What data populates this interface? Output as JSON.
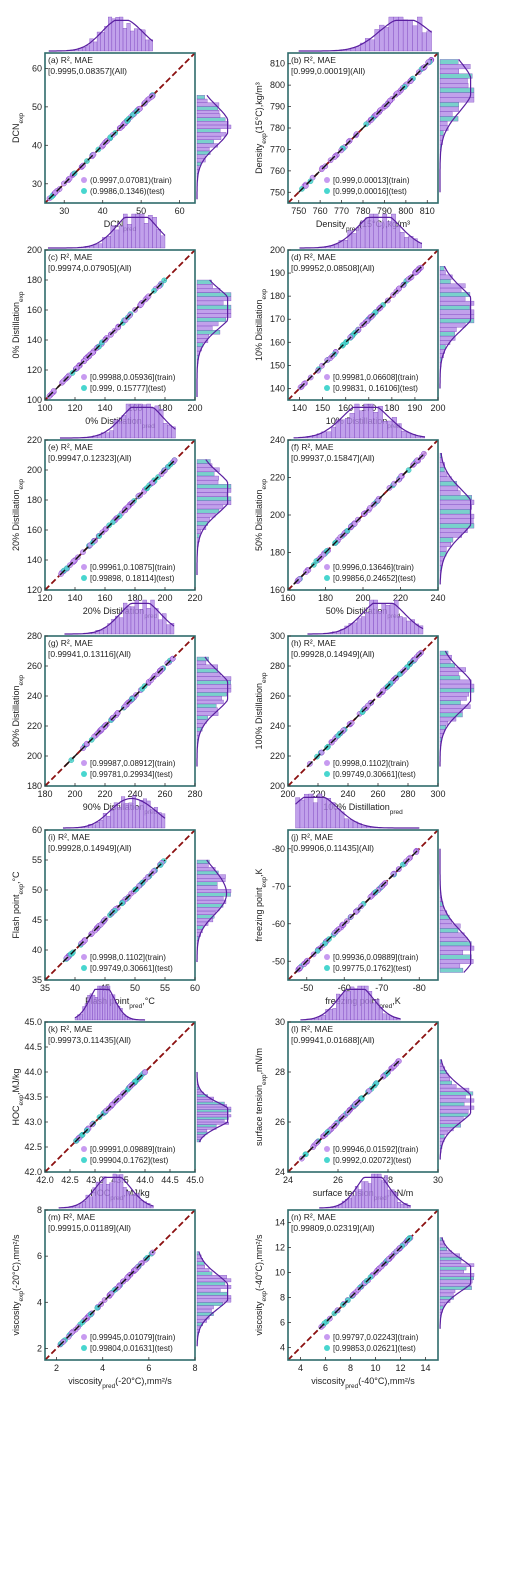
{
  "colors": {
    "train": "#c79af0",
    "test": "#48d6cf",
    "all_edge": "#7a2fc0",
    "diag": "#8b1010",
    "fit": "#111111",
    "hist": "#b28ae6",
    "hist_edge": "#6d2fb4",
    "hist_test": "#58c6bf",
    "curve": "#5a1fa0",
    "frame": "#2e6b6b"
  },
  "chart_data": [
    {
      "type": "scatter",
      "panel": "(a)",
      "header": "R², MAE",
      "all_text": "[0.9995,0.08357](All)",
      "train_text": "(0.9997,0.07081)(train)",
      "test_text": "(0.9986,0.1346)(test)",
      "xlabel": "DCN",
      "xlabel_sub": "pred",
      "xlabel_tail": "",
      "ylabel": "DCN",
      "ylabel_sub": "exp",
      "ylabel_tail": "",
      "xlim": [
        25,
        64
      ],
      "ylim": [
        25,
        64
      ],
      "xticks": [
        "30",
        "40",
        "50",
        "60"
      ],
      "yticks": [
        "30",
        "40",
        "50",
        "60"
      ],
      "tick_values": [
        30,
        40,
        50,
        60
      ],
      "reversed": false,
      "data_range": [
        26,
        53
      ],
      "hist_peaks": [
        43,
        48
      ],
      "legend_position": "bottom-right"
    },
    {
      "type": "scatter",
      "panel": "(b)",
      "header": "R², MAE",
      "all_text": "[0.999,0.00019](All)",
      "train_text": "[0.999,0.00013](train)",
      "test_text": "[0.999,0.00016](test)",
      "xlabel": "Density",
      "xlabel_sub": "pred",
      "xlabel_tail": "(15°C),kg/m³",
      "ylabel": "Density",
      "ylabel_sub": "exp",
      "ylabel_tail": "(15°C),kg/m³",
      "xlim": [
        745,
        815
      ],
      "ylim": [
        745,
        815
      ],
      "xticks": [
        "750",
        "760",
        "770",
        "780",
        "790",
        "800",
        "810"
      ],
      "yticks": [
        "750",
        "760",
        "770",
        "780",
        "790",
        "800",
        "810"
      ],
      "tick_values": [
        750,
        760,
        770,
        780,
        790,
        800,
        810
      ],
      "reversed": false,
      "data_range": [
        750,
        812
      ],
      "hist_peaks": [
        795,
        806
      ],
      "legend_position": "bottom-right"
    },
    {
      "type": "scatter",
      "panel": "(c)",
      "header": "R², MAE",
      "all_text": "[0.99974,0.07905](All)",
      "train_text": "[0.99988,0.05936](train)",
      "test_text": "[0.999, 0.15777](test)",
      "xlabel": "0% Distillation",
      "xlabel_sub": "pred",
      "xlabel_tail": "",
      "ylabel": "0% Distillation",
      "ylabel_sub": "exp",
      "ylabel_tail": "",
      "xlim": [
        100,
        200
      ],
      "ylim": [
        100,
        200
      ],
      "xticks": [
        "100",
        "120",
        "140",
        "160",
        "180",
        "200"
      ],
      "yticks": [
        "100",
        "120",
        "140",
        "160",
        "180",
        "200"
      ],
      "tick_values": [
        100,
        120,
        140,
        160,
        180,
        200
      ],
      "reversed": false,
      "data_range": [
        102,
        180
      ],
      "hist_peaks": [
        158,
        165
      ],
      "legend_position": "bottom-right"
    },
    {
      "type": "scatter",
      "panel": "(d)",
      "header": "R², MAE",
      "all_text": "[0.99952,0.08508](All)",
      "train_text": "[0.99981,0.06608](train)",
      "test_text": "[0.99831, 0.16106](test)",
      "xlabel": "10% Distillation",
      "xlabel_sub": "pred",
      "xlabel_tail": "",
      "ylabel": "10% Distillation",
      "ylabel_sub": "exp",
      "ylabel_tail": "",
      "xlim": [
        135,
        200
      ],
      "ylim": [
        135,
        200
      ],
      "xticks": [
        "140",
        "150",
        "160",
        "170",
        "180",
        "190",
        "200"
      ],
      "yticks": [
        "140",
        "150",
        "160",
        "170",
        "180",
        "190",
        "200"
      ],
      "tick_values": [
        140,
        150,
        160,
        170,
        180,
        190,
        200
      ],
      "reversed": false,
      "data_range": [
        140,
        193
      ],
      "hist_peaks": [
        172,
        178
      ],
      "legend_position": "bottom-right"
    },
    {
      "type": "scatter",
      "panel": "(e)",
      "header": "R², MAE",
      "all_text": "[0.99947,0.12323](All)",
      "train_text": "[0.99961,0.10875](train)",
      "test_text": "[0.99898, 0.18114](test)",
      "xlabel": "20% Distillation",
      "xlabel_sub": "pred",
      "xlabel_tail": "",
      "ylabel": "20% Distillation",
      "ylabel_sub": "exp",
      "ylabel_tail": "",
      "xlim": [
        120,
        220
      ],
      "ylim": [
        120,
        220
      ],
      "xticks": [
        "120",
        "140",
        "160",
        "180",
        "200",
        "220"
      ],
      "yticks": [
        "120",
        "140",
        "160",
        "180",
        "200",
        "220"
      ],
      "tick_values": [
        120,
        140,
        160,
        180,
        200,
        220
      ],
      "reversed": false,
      "data_range": [
        130,
        207
      ],
      "hist_peaks": [
        181,
        190
      ],
      "legend_position": "bottom-right"
    },
    {
      "type": "scatter",
      "panel": "(f)",
      "header": "R², MAE",
      "all_text": "[0.99937,0.15847](All)",
      "train_text": "[0.9996,0.13646](train)",
      "test_text": "[0.99856,0.24652](test)",
      "xlabel": "50% Distillation",
      "xlabel_sub": "pred",
      "xlabel_tail": "",
      "ylabel": "50% Distillation",
      "ylabel_sub": "exp",
      "ylabel_tail": "",
      "xlim": [
        160,
        240
      ],
      "ylim": [
        160,
        240
      ],
      "xticks": [
        "160",
        "180",
        "200",
        "220",
        "240"
      ],
      "yticks": [
        "160",
        "180",
        "200",
        "220",
        "240"
      ],
      "tick_values": [
        160,
        180,
        200,
        220,
        240
      ],
      "reversed": false,
      "data_range": [
        163,
        233
      ],
      "hist_peaks": [
        198,
        206
      ],
      "legend_position": "bottom-right"
    },
    {
      "type": "scatter",
      "panel": "(g)",
      "header": "R², MAE",
      "all_text": "[0.99941,0.13116](All)",
      "train_text": "[0.99987,0.08912](train)",
      "test_text": "[0.99781,0.29934](test)",
      "xlabel": "90% Distillation",
      "xlabel_sub": "pred",
      "xlabel_tail": "",
      "ylabel": "90% Distillation",
      "ylabel_sub": "exp",
      "ylabel_tail": "",
      "xlim": [
        180,
        280
      ],
      "ylim": [
        180,
        280
      ],
      "xticks": [
        "180",
        "200",
        "220",
        "240",
        "260",
        "280"
      ],
      "yticks": [
        "180",
        "200",
        "220",
        "240",
        "260",
        "280"
      ],
      "tick_values": [
        180,
        200,
        220,
        240,
        260,
        280
      ],
      "reversed": false,
      "data_range": [
        193,
        266
      ],
      "hist_peaks": [
        239,
        250
      ],
      "legend_position": "bottom-right"
    },
    {
      "type": "scatter",
      "panel": "(h)",
      "header": "R², MAE",
      "all_text": "[0.99928,0.14949](All)",
      "train_text": "[0.9998,0.1102](train)",
      "test_text": "[0.99749,0.30661](test)",
      "xlabel": "100% Distillation",
      "xlabel_sub": "pred",
      "xlabel_tail": "",
      "ylabel": "100% Distillation",
      "ylabel_sub": "exp",
      "ylabel_tail": "",
      "xlim": [
        200,
        300
      ],
      "ylim": [
        200,
        300
      ],
      "xticks": [
        "200",
        "220",
        "240",
        "260",
        "280",
        "300"
      ],
      "yticks": [
        "200",
        "220",
        "240",
        "260",
        "280",
        "300"
      ],
      "tick_values": [
        200,
        220,
        240,
        260,
        280,
        300
      ],
      "reversed": false,
      "data_range": [
        213,
        290
      ],
      "hist_peaks": [
        259,
        270
      ],
      "legend_position": "bottom-right"
    },
    {
      "type": "scatter",
      "panel": "(i)",
      "header": "R², MAE",
      "all_text": "[0.99928,0.14949](All)",
      "train_text": "[0.9998,0.1102](train)",
      "test_text": "[0.99749,0.30661](test)",
      "xlabel": "Flash point",
      "xlabel_sub": "pred",
      "xlabel_tail": ",°C",
      "ylabel": "Flash point",
      "ylabel_sub": "exp",
      "ylabel_tail": ",°C",
      "xlim": [
        35,
        60
      ],
      "ylim": [
        35,
        60
      ],
      "xticks": [
        "35",
        "40",
        "45",
        "50",
        "55",
        "60"
      ],
      "yticks": [
        "35",
        "40",
        "45",
        "50",
        "55",
        "60"
      ],
      "tick_values": [
        35,
        40,
        45,
        50,
        55,
        60
      ],
      "reversed": false,
      "data_range": [
        38,
        55
      ],
      "hist_peaks": [
        48,
        52
      ],
      "legend_position": "bottom-right"
    },
    {
      "type": "scatter",
      "panel": "(j)",
      "header": "R², MAE",
      "all_text": "[0.99906,0.11435](All)",
      "train_text": "[0.99936,0.09889](train)",
      "test_text": "[0.99775,0.1762](test)",
      "xlabel": "freezing point",
      "xlabel_sub": "pred",
      "xlabel_tail": ",K",
      "ylabel": "freezing point",
      "ylabel_sub": "exp",
      "ylabel_tail": ",K",
      "xlim": [
        -45,
        -85
      ],
      "ylim": [
        -45,
        -85
      ],
      "xticks": [
        "-50",
        "-60",
        "-70",
        "-80"
      ],
      "yticks": [
        "-50",
        "-60",
        "-70",
        "-80"
      ],
      "tick_values": [
        -50,
        -60,
        -70,
        -80
      ],
      "reversed": true,
      "data_range": [
        -47,
        -80
      ],
      "hist_peaks": [
        -50,
        -55
      ],
      "legend_position": "bottom-right"
    },
    {
      "type": "scatter",
      "panel": "(k)",
      "header": "R², MAE",
      "all_text": "[0.99973,0.11435](All)",
      "train_text": "[0.99991,0.09889](train)",
      "test_text": "[0.99904,0.1762](test)",
      "xlabel": "HOC",
      "xlabel_sub": "pred",
      "xlabel_tail": ",MJ/kg",
      "ylabel": "HOC",
      "ylabel_sub": "exp",
      "ylabel_tail": ",MJ/kg",
      "xlim": [
        42.0,
        45.0
      ],
      "ylim": [
        42.0,
        45.0
      ],
      "xticks": [
        "42.0",
        "42.5",
        "43.0",
        "43.5",
        "44.0",
        "44.5",
        "45.0"
      ],
      "yticks": [
        "42.0",
        "42.5",
        "43.0",
        "43.5",
        "44.0",
        "44.5",
        "45.0"
      ],
      "tick_values": [
        42.0,
        42.5,
        43.0,
        43.5,
        44.0,
        44.5,
        45.0
      ],
      "reversed": false,
      "data_range": [
        42.6,
        44.0
      ],
      "hist_peaks": [
        43.1,
        43.2
      ],
      "legend_position": "bottom-right"
    },
    {
      "type": "scatter",
      "panel": "(l)",
      "header": "R², MAE",
      "all_text": "[0.99941,0.01688](All)",
      "train_text": "[0.99946,0.01592](train)",
      "test_text": "[0.9992,0.02072](test)",
      "xlabel": "surface tension",
      "xlabel_sub": "pred",
      "xlabel_tail": ",mN/m",
      "ylabel": "surface tension",
      "ylabel_sub": "exp",
      "ylabel_tail": ",mN/m",
      "xlim": [
        24,
        30
      ],
      "ylim": [
        24,
        30
      ],
      "xticks": [
        "24",
        "26",
        "28",
        "30"
      ],
      "yticks": [
        "24",
        "26",
        "28",
        "30"
      ],
      "tick_values": [
        24,
        26,
        28,
        30
      ],
      "reversed": false,
      "data_range": [
        24.5,
        28.5
      ],
      "hist_peaks": [
        26.5,
        27.0
      ],
      "legend_position": "bottom-right"
    },
    {
      "type": "scatter",
      "panel": "(m)",
      "header": "R², MAE",
      "all_text": "[0.99915,0.01189](All)",
      "train_text": "[0.99945,0.01079](train)",
      "test_text": "[0.99804,0.01631](test)",
      "xlabel": "viscosity",
      "xlabel_sub": "pred",
      "xlabel_tail": "(-20°C),mm²/s",
      "ylabel": "viscosity",
      "ylabel_sub": "exp",
      "ylabel_tail": "(-20°C),mm²/s",
      "xlim": [
        1.5,
        8
      ],
      "ylim": [
        1.5,
        8
      ],
      "xticks": [
        "2",
        "4",
        "6",
        "8"
      ],
      "yticks": [
        "2",
        "4",
        "6",
        "8"
      ],
      "tick_values": [
        2,
        4,
        6,
        8
      ],
      "reversed": false,
      "data_range": [
        2.1,
        6.2
      ],
      "hist_peaks": [
        4.2,
        4.8
      ],
      "legend_position": "bottom-right"
    },
    {
      "type": "scatter",
      "panel": "(n)",
      "header": "R², MAE",
      "all_text": "[0.99809,0.02319](All)",
      "train_text": "[0.99797,0.02243](train)",
      "test_text": "[0.99853,0.02621](test)",
      "xlabel": "viscosity",
      "xlabel_sub": "pred",
      "xlabel_tail": "(-40°C),mm²/s",
      "ylabel": "viscosity",
      "ylabel_sub": "exp",
      "ylabel_tail": "(-40°C),mm²/s",
      "xlim": [
        3,
        15
      ],
      "ylim": [
        3,
        15
      ],
      "xticks": [
        "4",
        "6",
        "8",
        "10",
        "12",
        "14"
      ],
      "yticks": [
        "4",
        "6",
        "8",
        "10",
        "12",
        "14"
      ],
      "tick_values": [
        4,
        6,
        8,
        10,
        12,
        14
      ],
      "reversed": false,
      "data_range": [
        5.5,
        12.8
      ],
      "hist_peaks": [
        9.5,
        10.2
      ],
      "legend_position": "bottom-right"
    }
  ]
}
